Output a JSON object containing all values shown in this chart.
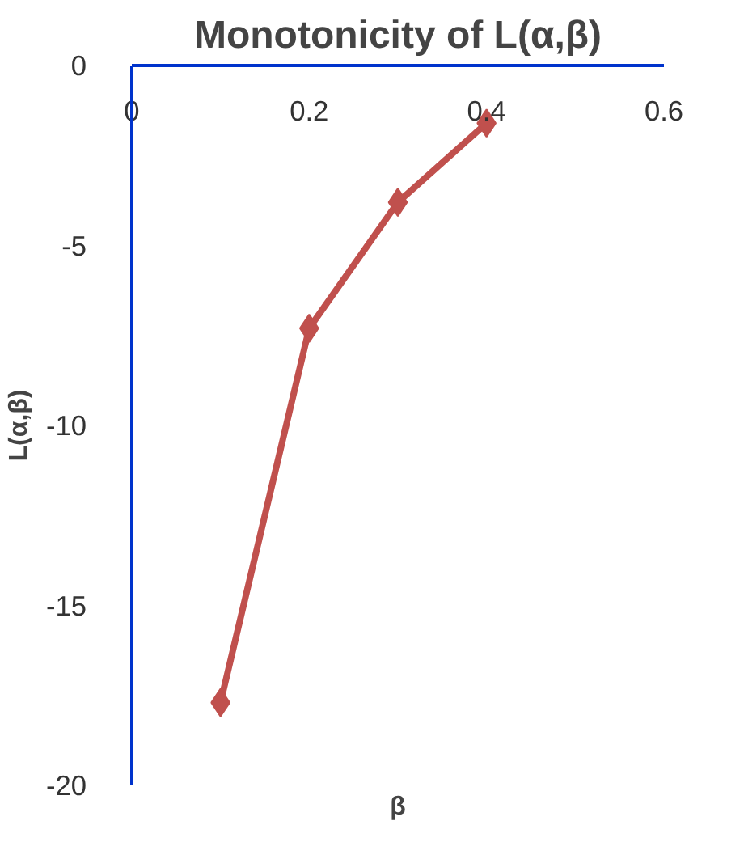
{
  "chart_data": {
    "type": "line",
    "title": "Monotonicity of L(α,β)",
    "xlabel": "β",
    "ylabel": "L(α,β)",
    "x": [
      0.1,
      0.2,
      0.3,
      0.4
    ],
    "series": [
      {
        "color": "#c0504d",
        "values": [
          -17.7,
          -7.3,
          -3.8,
          -1.6
        ]
      }
    ],
    "xlim": [
      0,
      0.6
    ],
    "xticks": [
      0,
      0.2,
      0.4,
      0.6
    ],
    "ylim": [
      -20,
      0
    ],
    "yticks": [
      -20,
      -15,
      -10,
      -5,
      0
    ],
    "grid": false,
    "marker": "diamond",
    "line_style": "solid"
  }
}
